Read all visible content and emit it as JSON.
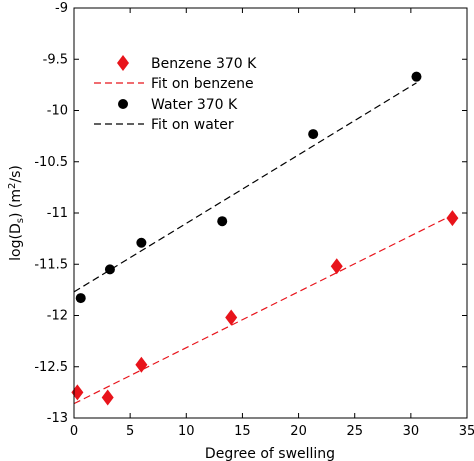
{
  "chart_data": {
    "type": "scatter",
    "xlabel": "Degree of swelling",
    "ylabel": "log(D",
    "ylabel_sub": "s",
    "ylabel_unit": ") (m",
    "ylabel_sup": "2",
    "ylabel_tail": "/s)",
    "xlim": [
      0,
      35
    ],
    "ylim": [
      -13,
      -9
    ],
    "xticks": [
      0,
      5,
      10,
      15,
      20,
      25,
      30,
      35
    ],
    "xtick_labels": [
      "0",
      "5",
      "10",
      "15",
      "20",
      "25",
      "30",
      "35"
    ],
    "yticks": [
      -13,
      -12.5,
      -12,
      -11.5,
      -11,
      -10.5,
      -10,
      -9.5,
      -9
    ],
    "ytick_labels": [
      "-13",
      "-12.5",
      "-12",
      "-11.5",
      "-11",
      "-10.5",
      "-10",
      "-9.5",
      "-9"
    ],
    "grid": false,
    "legend_position": "top-left",
    "series": [
      {
        "name": "Benzene 370 K",
        "kind": "points",
        "marker": "diamond",
        "color": "#e8141b",
        "x": [
          0.3,
          3.0,
          6.0,
          14.0,
          23.4,
          33.7
        ],
        "y": [
          -12.75,
          -12.8,
          -12.48,
          -12.02,
          -11.52,
          -11.05
        ]
      },
      {
        "name": "Fit on benzene",
        "kind": "line",
        "dash": "dashed",
        "color": "#e8141b",
        "x": [
          0,
          33.7
        ],
        "y": [
          -12.86,
          -11.02
        ]
      },
      {
        "name": "Water 370 K",
        "kind": "points",
        "marker": "circle",
        "color": "#000000",
        "x": [
          0.6,
          3.2,
          6.0,
          13.2,
          21.3,
          30.5
        ],
        "y": [
          -11.83,
          -11.55,
          -11.29,
          -11.08,
          -10.23,
          -9.67
        ]
      },
      {
        "name": "Fit on water",
        "kind": "line",
        "dash": "dashed",
        "color": "#000000",
        "x": [
          0,
          30.5
        ],
        "y": [
          -11.77,
          -9.73
        ]
      }
    ]
  }
}
